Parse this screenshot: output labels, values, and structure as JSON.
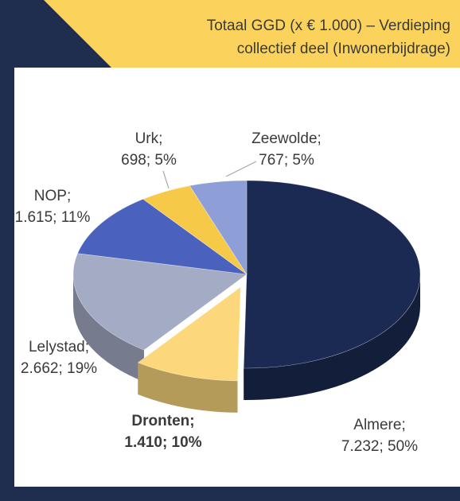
{
  "chart_data": {
    "type": "pie3d",
    "title": [
      "Totaal GGD (x € 1.000)  – Verdieping",
      "collectief deel (Inwonerbijdrage)"
    ],
    "categories": [
      "Almere;",
      "Dronten;",
      "Lelystad;",
      "NOP;",
      "Urk;",
      "Zeewolde;"
    ],
    "values": [
      7232,
      1410,
      2662,
      1615,
      698,
      767
    ],
    "value_labels": [
      "7.232; 50%",
      "1.410; 10%",
      "2.662; 19%",
      "1.615; 11%",
      "698; 5%",
      "767; 5%"
    ],
    "colors": [
      "#1b2a52",
      "#fcd77c",
      "#a4abc4",
      "#4a62bd",
      "#f7c948",
      "#8d9fd6"
    ],
    "explode_index": 1,
    "bold_index": 1
  }
}
